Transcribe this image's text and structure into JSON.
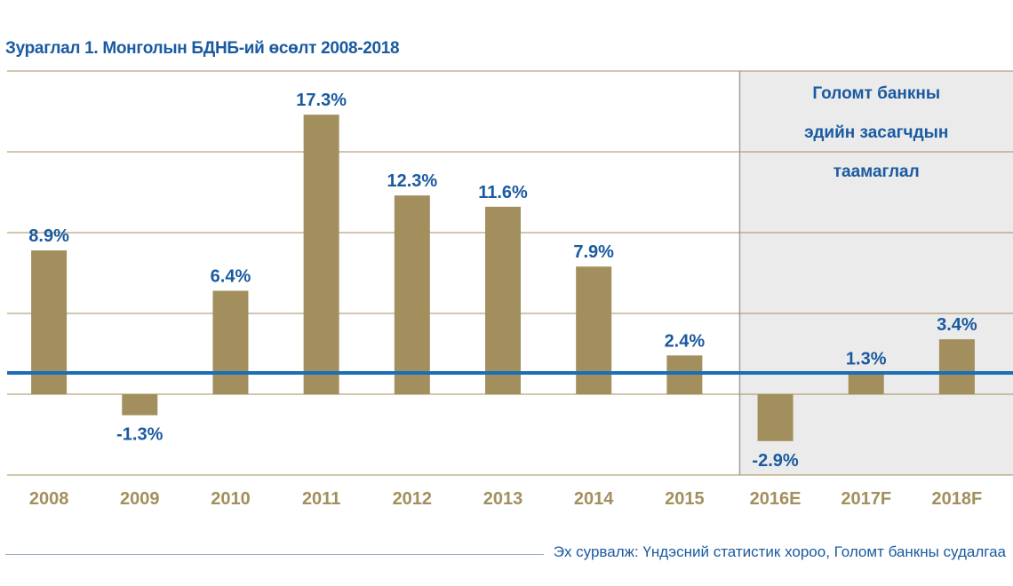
{
  "title": "Зураглал 1. Монголын БДНБ-ий өсөлт 2008-2018",
  "source": "Эх сурвалж: Үндэсний статистик хороо, Голомт банкны судалгаа",
  "colors": {
    "bar": "#a28f5d",
    "zero_line": "#1a6fb4",
    "label": "#1a5aa0",
    "tick": "#a28f5d",
    "forecast_bg": "#ebebeb"
  },
  "chart_data": {
    "type": "bar",
    "title": "Зураглал 1. Монголын БДНБ-ий өсөлт 2008-2018",
    "categories": [
      "2008",
      "2009",
      "2010",
      "2011",
      "2012",
      "2013",
      "2014",
      "2015",
      "2016E",
      "2017F",
      "2018F"
    ],
    "values": [
      8.9,
      -1.3,
      6.4,
      17.3,
      12.3,
      11.6,
      7.9,
      2.4,
      -2.9,
      1.3,
      3.4
    ],
    "value_labels": [
      "8.9%",
      "-1.3%",
      "6.4%",
      "17.3%",
      "12.3%",
      "11.6%",
      "7.9%",
      "2.4%",
      "-2.9%",
      "1.3%",
      "3.4%"
    ],
    "ylim": [
      -5,
      20
    ],
    "grid": true,
    "forecast_region": {
      "from_category": "2016E",
      "label_lines": [
        "Голомт банкны",
        "эдийн засагчдын",
        "таамаглал"
      ]
    }
  }
}
